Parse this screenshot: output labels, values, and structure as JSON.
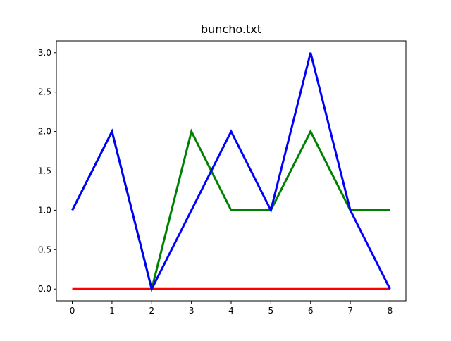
{
  "chart_data": {
    "type": "line",
    "title": "buncho.txt",
    "xlabel": "",
    "ylabel": "",
    "x": [
      0,
      1,
      2,
      3,
      4,
      5,
      6,
      7,
      8
    ],
    "xlim": [
      -0.4,
      8.4
    ],
    "ylim": [
      -0.15,
      3.15
    ],
    "xticks": [
      "0",
      "1",
      "2",
      "3",
      "4",
      "5",
      "6",
      "7",
      "8"
    ],
    "yticks": [
      "0.0",
      "0.5",
      "1.0",
      "1.5",
      "2.0",
      "2.5",
      "3.0"
    ],
    "grid": false,
    "series": [
      {
        "color": "#ff0000",
        "values": [
          0,
          0,
          0,
          0,
          0,
          0,
          0,
          0,
          0
        ]
      },
      {
        "color": "#008000",
        "values": [
          1,
          2,
          0,
          2,
          1,
          1,
          2,
          1,
          1
        ]
      },
      {
        "color": "#0000ff",
        "values": [
          1,
          2,
          0,
          1,
          2,
          1,
          3,
          1,
          0
        ]
      }
    ]
  }
}
